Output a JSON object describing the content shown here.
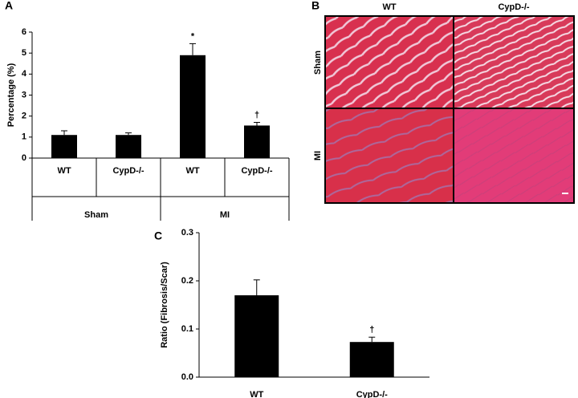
{
  "chart_data": [
    {
      "type": "bar",
      "panel_label": "A",
      "ylabel": "Percentage (%)",
      "categories": [
        "WT",
        "CypD-/-",
        "WT",
        "CypD-/-"
      ],
      "group_labels": [
        "Sham",
        "MI"
      ],
      "values": [
        1.1,
        1.1,
        4.9,
        1.55
      ],
      "errors": [
        0.2,
        0.1,
        0.55,
        0.15
      ],
      "annotations": [
        null,
        null,
        "*",
        "†"
      ],
      "color": "#000000",
      "ylim": [
        0,
        6
      ],
      "yticks": [
        0,
        1,
        2,
        3,
        4,
        5,
        6
      ]
    },
    {
      "type": "bar",
      "panel_label": "C",
      "ylabel": "Ratio (Fibrosis/Scar)",
      "categories": [
        "WT",
        "CypD-/-"
      ],
      "values": [
        0.17,
        0.073
      ],
      "errors": [
        0.032,
        0.01
      ],
      "annotations": [
        null,
        "†"
      ],
      "color": "#000000",
      "ylim": [
        0,
        0.3
      ],
      "yticks": [
        {
          "value": 0,
          "label": "0.0"
        },
        0.1,
        0.2,
        0.3
      ]
    }
  ],
  "panel_b": {
    "label": "B",
    "columns": [
      "WT",
      "CypD-/-"
    ],
    "rows": [
      "Sham",
      "MI"
    ]
  }
}
